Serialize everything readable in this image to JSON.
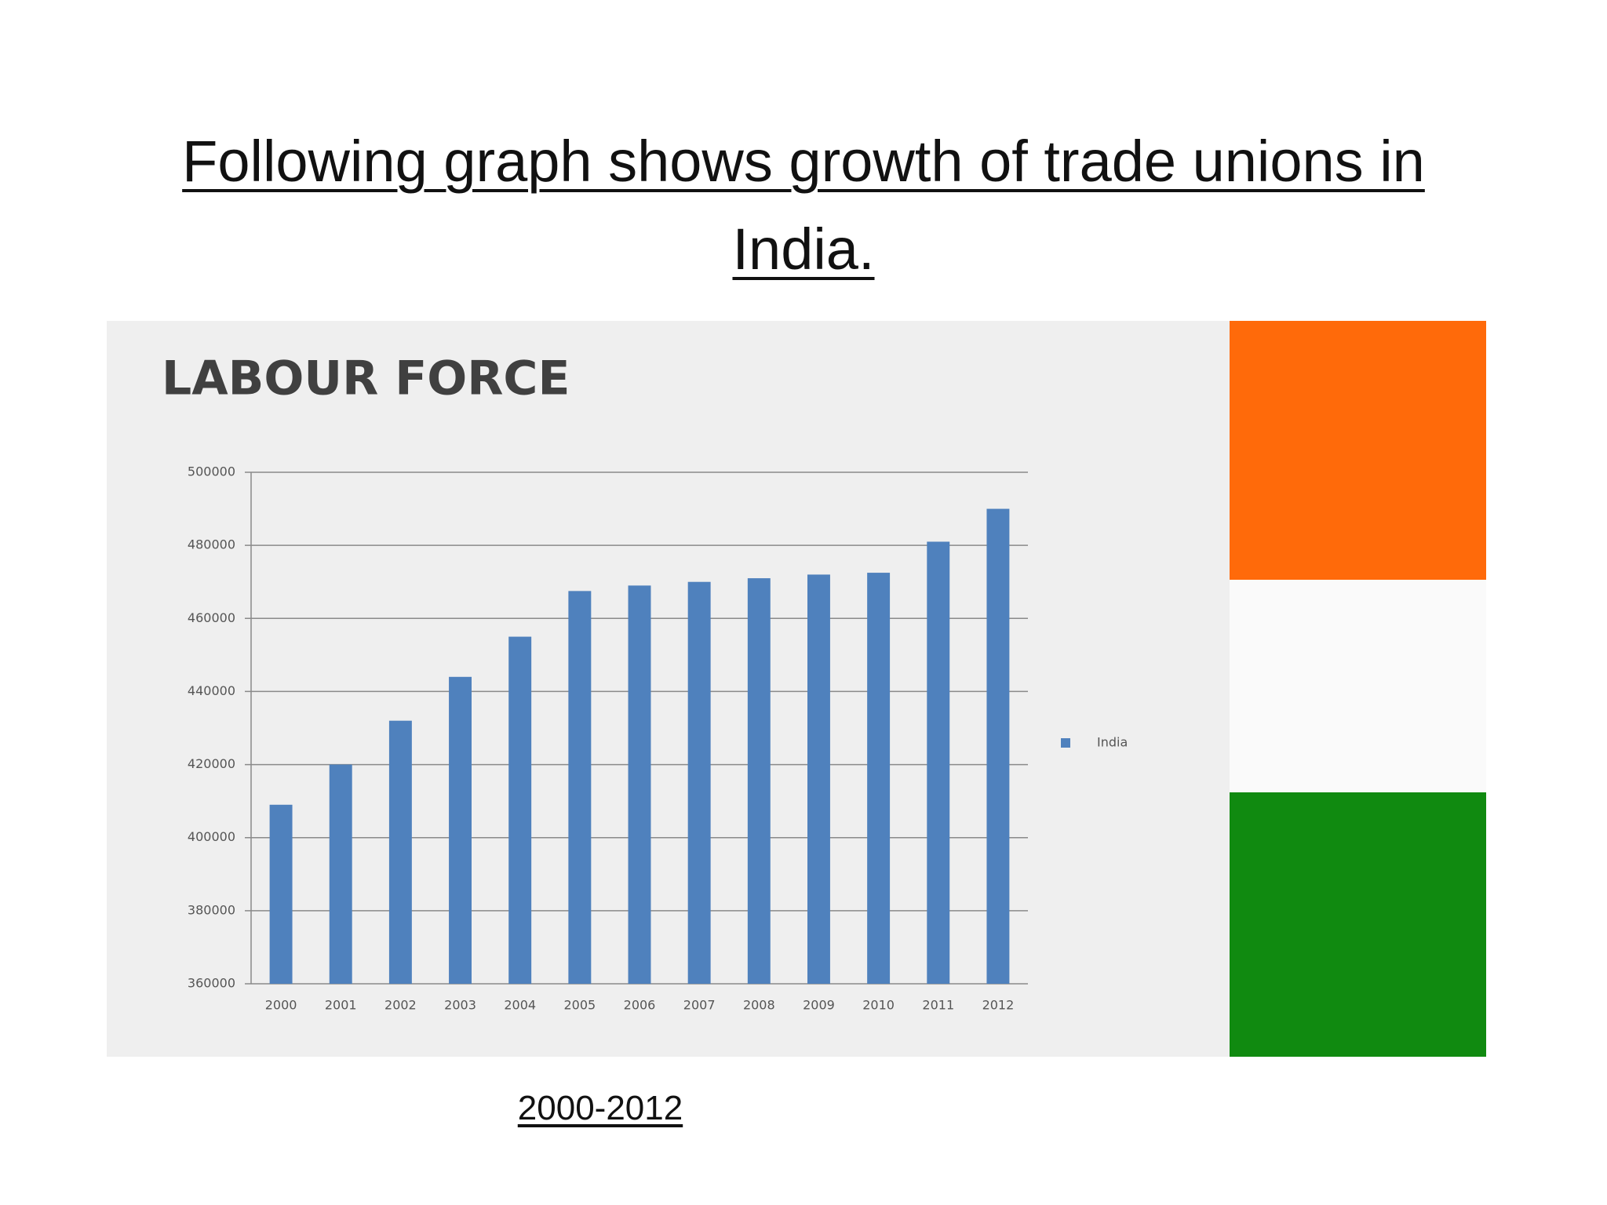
{
  "slide": {
    "title": "Following graph shows growth of trade unions in India.",
    "caption": "2000-2012"
  },
  "chart_data": {
    "type": "bar",
    "title": "LABOUR FORCE",
    "categories": [
      "2000",
      "2001",
      "2002",
      "2003",
      "2004",
      "2005",
      "2006",
      "2007",
      "2008",
      "2009",
      "2010",
      "2011",
      "2012"
    ],
    "series": [
      {
        "name": "India",
        "color": "#4f81bd",
        "values": [
          409000,
          420000,
          432000,
          444000,
          455000,
          467500,
          469000,
          470000,
          471000,
          472000,
          472500,
          481000,
          490000
        ]
      }
    ],
    "ylim": [
      360000,
      500000
    ],
    "yticks": [
      360000,
      380000,
      400000,
      420000,
      440000,
      460000,
      480000,
      500000
    ],
    "grid": true,
    "legend": "right"
  }
}
